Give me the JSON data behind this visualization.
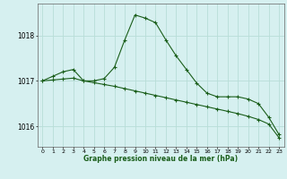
{
  "title": "Graphe pression niveau de la mer (hPa)",
  "background_color": "#d6f0f0",
  "grid_color": "#b8ddd8",
  "line_color": "#1a5e1a",
  "xlim": [
    -0.5,
    23.5
  ],
  "ylim": [
    1015.55,
    1018.7
  ],
  "yticks": [
    1016,
    1017,
    1018
  ],
  "xticks": [
    0,
    1,
    2,
    3,
    4,
    5,
    6,
    7,
    8,
    9,
    10,
    11,
    12,
    13,
    14,
    15,
    16,
    17,
    18,
    19,
    20,
    21,
    22,
    23
  ],
  "series1_x": [
    0,
    1,
    2,
    3,
    4,
    5,
    6,
    7,
    8,
    9,
    10,
    11,
    12,
    13,
    14,
    15,
    16,
    17,
    18,
    19,
    20,
    21,
    22,
    23
  ],
  "series1_y": [
    1017.0,
    1017.1,
    1017.2,
    1017.25,
    1017.0,
    1017.0,
    1017.05,
    1017.3,
    1017.9,
    1018.45,
    1018.38,
    1018.28,
    1017.9,
    1017.55,
    1017.25,
    1016.95,
    1016.73,
    1016.65,
    1016.65,
    1016.65,
    1016.6,
    1016.5,
    1016.2,
    1015.82
  ],
  "series2_x": [
    0,
    1,
    2,
    3,
    4,
    5,
    6,
    7,
    8,
    9,
    10,
    11,
    12,
    13,
    14,
    15,
    16,
    17,
    18,
    19,
    20,
    21,
    22,
    23
  ],
  "series2_y": [
    1017.0,
    1017.02,
    1017.04,
    1017.06,
    1017.0,
    1016.96,
    1016.92,
    1016.88,
    1016.83,
    1016.78,
    1016.73,
    1016.68,
    1016.63,
    1016.58,
    1016.53,
    1016.48,
    1016.43,
    1016.38,
    1016.33,
    1016.28,
    1016.22,
    1016.15,
    1016.05,
    1015.75
  ]
}
